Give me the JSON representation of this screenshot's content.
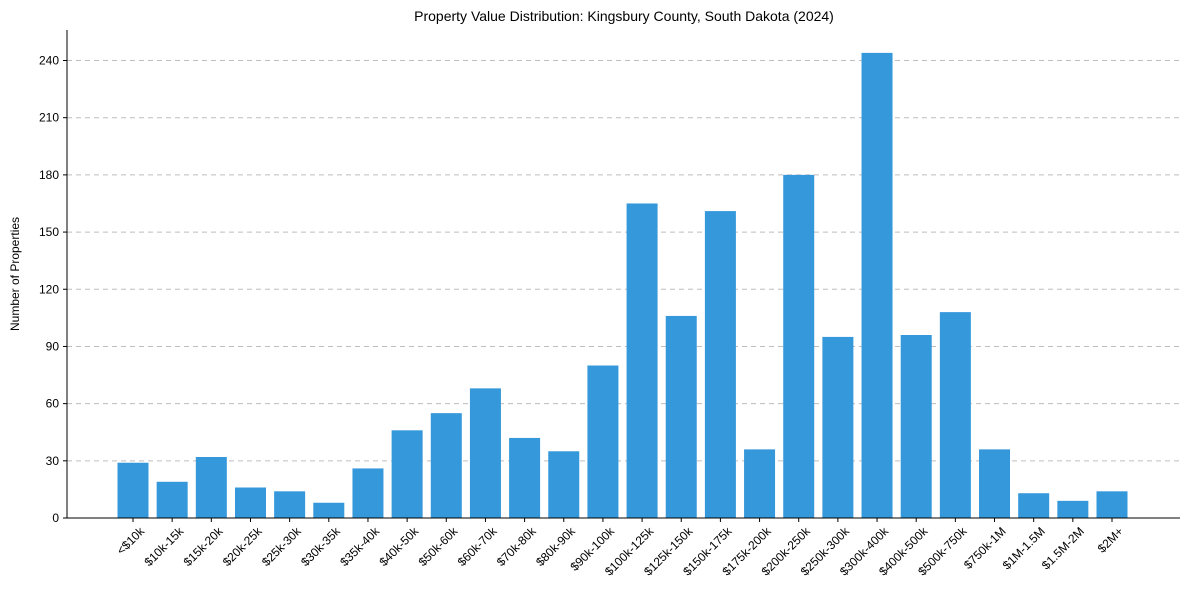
{
  "chart_data": {
    "type": "bar",
    "title": "Property Value Distribution: Kingsbury County, South Dakota (2024)",
    "xlabel": "",
    "ylabel": "Number of Properties",
    "categories": [
      "<$10k",
      "$10k-15k",
      "$15k-20k",
      "$20k-25k",
      "$25k-30k",
      "$30k-35k",
      "$35k-40k",
      "$40k-50k",
      "$50k-60k",
      "$60k-70k",
      "$70k-80k",
      "$80k-90k",
      "$90k-100k",
      "$100k-125k",
      "$125k-150k",
      "$150k-175k",
      "$175k-200k",
      "$200k-250k",
      "$250k-300k",
      "$300k-400k",
      "$400k-500k",
      "$500k-750k",
      "$750k-1M",
      "$1M-1.5M",
      "$1.5M-2M",
      "$2M+"
    ],
    "values": [
      29,
      19,
      32,
      16,
      14,
      8,
      26,
      46,
      55,
      68,
      42,
      35,
      80,
      165,
      106,
      161,
      36,
      180,
      95,
      244,
      96,
      108,
      36,
      13,
      9,
      14
    ],
    "yticks": [
      0,
      30,
      60,
      90,
      120,
      150,
      180,
      210,
      240
    ],
    "ylim": [
      0,
      256
    ],
    "grid": "y-dashed",
    "legend": "none",
    "bar_color": "#3498db"
  }
}
